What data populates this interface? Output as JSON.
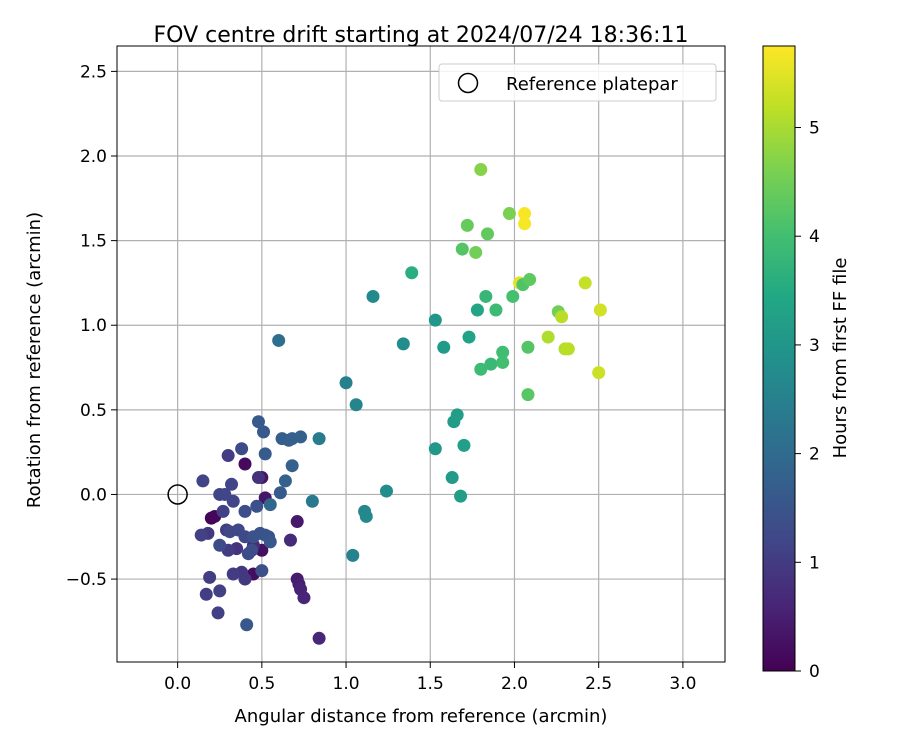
{
  "chart_data": {
    "type": "scatter",
    "title": "FOV centre drift starting at 2024/07/24 18:36:11",
    "xlabel": "Angular distance from reference (arcmin)",
    "ylabel": "Rotation from reference (arcmin)",
    "xlim": [
      -0.36,
      3.25
    ],
    "ylim": [
      -0.99,
      2.65
    ],
    "xticks": [
      0.0,
      0.5,
      1.0,
      1.5,
      2.0,
      2.5,
      3.0
    ],
    "xtick_labels": [
      "0.0",
      "0.5",
      "1.0",
      "1.5",
      "2.0",
      "2.5",
      "3.0"
    ],
    "yticks": [
      -0.5,
      0.0,
      0.5,
      1.0,
      1.5,
      2.0,
      2.5
    ],
    "ytick_labels": [
      "−0.5",
      "0.0",
      "0.5",
      "1.0",
      "1.5",
      "2.0",
      "2.5"
    ],
    "grid": true,
    "legend": {
      "position": "top-right",
      "label": "Reference platepar"
    },
    "reference_point": {
      "x": 0.0,
      "y": 0.0
    },
    "colorbar": {
      "label": "Hours from first FF file",
      "min": 0,
      "max": 5.75,
      "ticks": [
        0,
        1,
        2,
        3,
        4,
        5
      ],
      "tick_labels": [
        "0",
        "1",
        "2",
        "3",
        "4",
        "5"
      ],
      "colormap": "viridis"
    },
    "points": [
      {
        "x": 0.2,
        "y": -0.14,
        "c": 0.05
      },
      {
        "x": 0.22,
        "y": -0.13,
        "c": 0.1
      },
      {
        "x": 0.4,
        "y": 0.18,
        "c": 0.15
      },
      {
        "x": 0.45,
        "y": -0.47,
        "c": 0.2
      },
      {
        "x": 0.5,
        "y": -0.33,
        "c": 0.25
      },
      {
        "x": 0.5,
        "y": 0.1,
        "c": 0.3
      },
      {
        "x": 0.52,
        "y": -0.02,
        "c": 0.35
      },
      {
        "x": 0.71,
        "y": -0.16,
        "c": 0.4
      },
      {
        "x": 0.71,
        "y": -0.5,
        "c": 0.45
      },
      {
        "x": 0.72,
        "y": -0.53,
        "c": 0.5
      },
      {
        "x": 0.73,
        "y": -0.56,
        "c": 0.55
      },
      {
        "x": 0.75,
        "y": -0.61,
        "c": 0.6
      },
      {
        "x": 0.84,
        "y": -0.85,
        "c": 0.65
      },
      {
        "x": 0.67,
        "y": -0.27,
        "c": 0.7
      },
      {
        "x": 0.45,
        "y": -0.3,
        "c": 0.75
      },
      {
        "x": 0.48,
        "y": 0.1,
        "c": 0.8
      },
      {
        "x": 0.35,
        "y": -0.32,
        "c": 0.85
      },
      {
        "x": 0.38,
        "y": -0.46,
        "c": 0.9
      },
      {
        "x": 0.4,
        "y": -0.5,
        "c": 0.95
      },
      {
        "x": 0.3,
        "y": 0.23,
        "c": 1.0
      },
      {
        "x": 0.29,
        "y": -0.21,
        "c": 1.05
      },
      {
        "x": 0.27,
        "y": -0.1,
        "c": 1.1
      },
      {
        "x": 0.18,
        "y": -0.23,
        "c": 0.95
      },
      {
        "x": 0.3,
        "y": -0.33,
        "c": 1.0
      },
      {
        "x": 0.33,
        "y": -0.47,
        "c": 1.0
      },
      {
        "x": 0.17,
        "y": -0.59,
        "c": 1.05
      },
      {
        "x": 0.19,
        "y": -0.49,
        "c": 1.05
      },
      {
        "x": 0.25,
        "y": -0.57,
        "c": 1.1
      },
      {
        "x": 0.24,
        "y": -0.7,
        "c": 1.1
      },
      {
        "x": 0.14,
        "y": -0.24,
        "c": 1.1
      },
      {
        "x": 0.15,
        "y": 0.08,
        "c": 1.15
      },
      {
        "x": 0.25,
        "y": 0.0,
        "c": 1.15
      },
      {
        "x": 0.28,
        "y": 0.0,
        "c": 1.2
      },
      {
        "x": 0.32,
        "y": 0.06,
        "c": 1.2
      },
      {
        "x": 0.33,
        "y": -0.04,
        "c": 1.2
      },
      {
        "x": 0.31,
        "y": -0.22,
        "c": 1.25
      },
      {
        "x": 0.36,
        "y": -0.21,
        "c": 1.25
      },
      {
        "x": 0.4,
        "y": -0.25,
        "c": 1.25
      },
      {
        "x": 0.42,
        "y": -0.35,
        "c": 1.3
      },
      {
        "x": 0.25,
        "y": -0.3,
        "c": 1.3
      },
      {
        "x": 0.38,
        "y": 0.27,
        "c": 1.3
      },
      {
        "x": 0.4,
        "y": -0.1,
        "c": 1.35
      },
      {
        "x": 0.44,
        "y": -0.33,
        "c": 1.35
      },
      {
        "x": 0.5,
        "y": -0.45,
        "c": 1.4
      },
      {
        "x": 0.47,
        "y": -0.07,
        "c": 1.4
      },
      {
        "x": 0.49,
        "y": -0.23,
        "c": 1.45
      },
      {
        "x": 0.45,
        "y": -0.25,
        "c": 1.45
      },
      {
        "x": 0.52,
        "y": -0.24,
        "c": 1.5
      },
      {
        "x": 0.54,
        "y": -0.25,
        "c": 1.5
      },
      {
        "x": 0.55,
        "y": -0.28,
        "c": 1.55
      },
      {
        "x": 0.41,
        "y": -0.77,
        "c": 1.55
      },
      {
        "x": 0.51,
        "y": 0.37,
        "c": 1.6
      },
      {
        "x": 0.48,
        "y": 0.43,
        "c": 1.6
      },
      {
        "x": 0.52,
        "y": 0.24,
        "c": 1.65
      },
      {
        "x": 0.61,
        "y": 0.01,
        "c": 1.65
      },
      {
        "x": 0.62,
        "y": 0.33,
        "c": 1.7
      },
      {
        "x": 0.66,
        "y": 0.32,
        "c": 1.7
      },
      {
        "x": 0.68,
        "y": 0.33,
        "c": 1.75
      },
      {
        "x": 0.73,
        "y": 0.34,
        "c": 1.75
      },
      {
        "x": 0.68,
        "y": 0.17,
        "c": 1.8
      },
      {
        "x": 0.64,
        "y": 0.08,
        "c": 1.8
      },
      {
        "x": 0.55,
        "y": -0.06,
        "c": 1.9
      },
      {
        "x": 0.6,
        "y": 0.91,
        "c": 2.1
      },
      {
        "x": 0.8,
        "y": -0.04,
        "c": 2.3
      },
      {
        "x": 0.84,
        "y": 0.33,
        "c": 2.4
      },
      {
        "x": 1.0,
        "y": 0.66,
        "c": 2.5
      },
      {
        "x": 1.04,
        "y": -0.36,
        "c": 2.55
      },
      {
        "x": 1.06,
        "y": 0.53,
        "c": 2.6
      },
      {
        "x": 1.11,
        "y": -0.1,
        "c": 2.65
      },
      {
        "x": 1.12,
        "y": -0.13,
        "c": 2.7
      },
      {
        "x": 1.16,
        "y": 1.17,
        "c": 2.7
      },
      {
        "x": 1.24,
        "y": 0.02,
        "c": 2.75
      },
      {
        "x": 1.34,
        "y": 0.89,
        "c": 2.8
      },
      {
        "x": 1.39,
        "y": 1.31,
        "c": 3.6
      },
      {
        "x": 1.53,
        "y": 1.03,
        "c": 3.0
      },
      {
        "x": 1.53,
        "y": 0.27,
        "c": 3.05
      },
      {
        "x": 1.58,
        "y": 0.87,
        "c": 3.1
      },
      {
        "x": 1.63,
        "y": 0.1,
        "c": 3.1
      },
      {
        "x": 1.64,
        "y": 0.43,
        "c": 3.15
      },
      {
        "x": 1.66,
        "y": 0.47,
        "c": 3.2
      },
      {
        "x": 1.68,
        "y": -0.01,
        "c": 3.2
      },
      {
        "x": 1.7,
        "y": 0.29,
        "c": 3.25
      },
      {
        "x": 1.73,
        "y": 0.93,
        "c": 3.3
      },
      {
        "x": 1.78,
        "y": 1.09,
        "c": 3.35
      },
      {
        "x": 1.69,
        "y": 1.45,
        "c": 4.2
      },
      {
        "x": 1.72,
        "y": 1.59,
        "c": 4.4
      },
      {
        "x": 1.77,
        "y": 1.43,
        "c": 4.5
      },
      {
        "x": 1.8,
        "y": 0.74,
        "c": 3.9
      },
      {
        "x": 1.83,
        "y": 1.17,
        "c": 3.8
      },
      {
        "x": 1.84,
        "y": 1.54,
        "c": 4.35
      },
      {
        "x": 1.86,
        "y": 0.77,
        "c": 3.85
      },
      {
        "x": 1.89,
        "y": 1.09,
        "c": 3.9
      },
      {
        "x": 1.8,
        "y": 1.92,
        "c": 4.7
      },
      {
        "x": 1.93,
        "y": 0.84,
        "c": 3.95
      },
      {
        "x": 1.93,
        "y": 0.78,
        "c": 4.0
      },
      {
        "x": 1.97,
        "y": 1.66,
        "c": 4.6
      },
      {
        "x": 1.99,
        "y": 1.17,
        "c": 4.05
      },
      {
        "x": 2.03,
        "y": 1.25,
        "c": 5.5
      },
      {
        "x": 2.05,
        "y": 1.24,
        "c": 4.15
      },
      {
        "x": 2.06,
        "y": 1.66,
        "c": 5.7
      },
      {
        "x": 2.06,
        "y": 1.6,
        "c": 5.7
      },
      {
        "x": 2.08,
        "y": 0.87,
        "c": 4.2
      },
      {
        "x": 2.08,
        "y": 0.59,
        "c": 4.25
      },
      {
        "x": 2.09,
        "y": 1.27,
        "c": 4.3
      },
      {
        "x": 2.2,
        "y": 0.93,
        "c": 5.05
      },
      {
        "x": 2.26,
        "y": 1.08,
        "c": 4.5
      },
      {
        "x": 2.28,
        "y": 1.05,
        "c": 5.15
      },
      {
        "x": 2.3,
        "y": 0.86,
        "c": 5.1
      },
      {
        "x": 2.32,
        "y": 0.86,
        "c": 5.15
      },
      {
        "x": 2.42,
        "y": 1.25,
        "c": 5.25
      },
      {
        "x": 2.5,
        "y": 0.72,
        "c": 5.3
      },
      {
        "x": 2.51,
        "y": 1.09,
        "c": 5.35
      }
    ]
  }
}
